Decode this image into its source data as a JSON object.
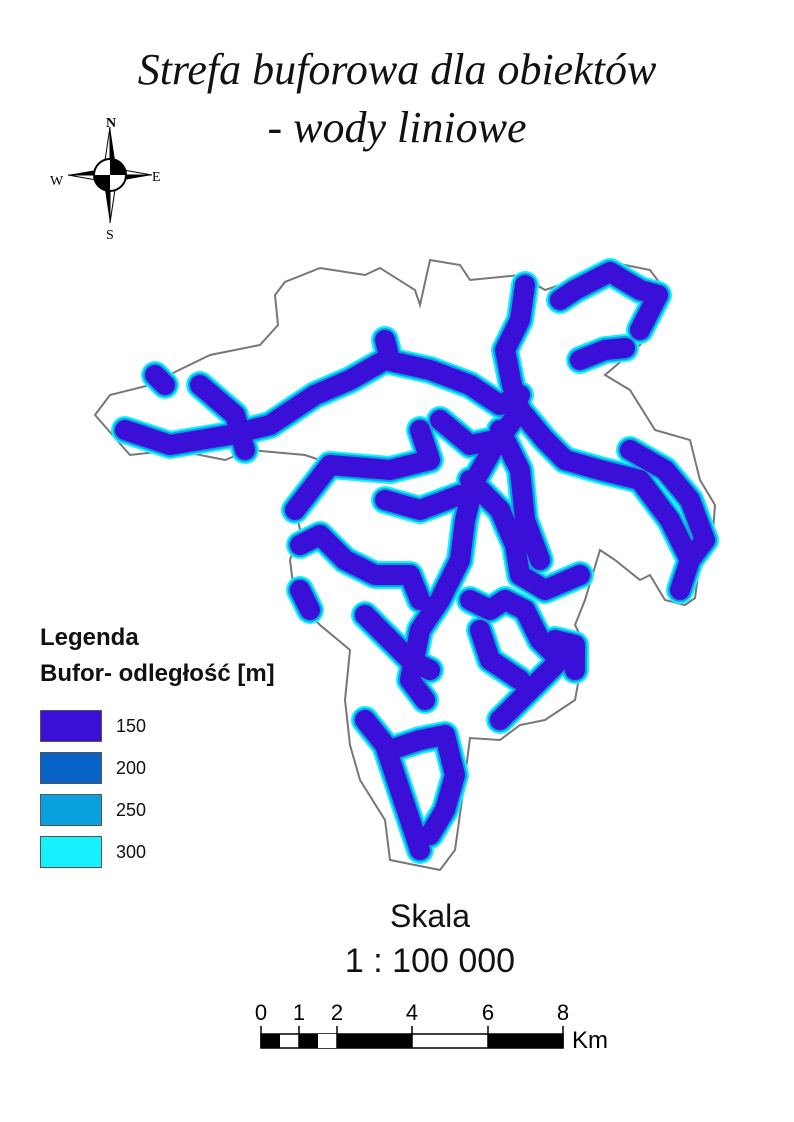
{
  "title": {
    "line1": "Strefa buforowa dla obiektów",
    "line2": "- wody liniowe"
  },
  "compass": {
    "north": "N",
    "south": "S",
    "east": "E",
    "west": "W"
  },
  "legend": {
    "title": "Legenda",
    "subtitle": "Bufor- odległość [m]",
    "items": [
      {
        "label": "150",
        "color": "#3a10d8"
      },
      {
        "label": "200",
        "color": "#0a64c8"
      },
      {
        "label": "250",
        "color": "#0aa0e0"
      },
      {
        "label": "300",
        "color": "#16f0ff"
      }
    ]
  },
  "scale": {
    "label": "Skala",
    "ratio": "1 : 100 000",
    "unit": "Km",
    "ticks": [
      "0",
      "1",
      "2",
      "4",
      "6",
      "8"
    ]
  },
  "colors": {
    "boundary": "#777777",
    "buffer_inner": "#3a10d8",
    "buffer_outer": "#16f0ff"
  }
}
